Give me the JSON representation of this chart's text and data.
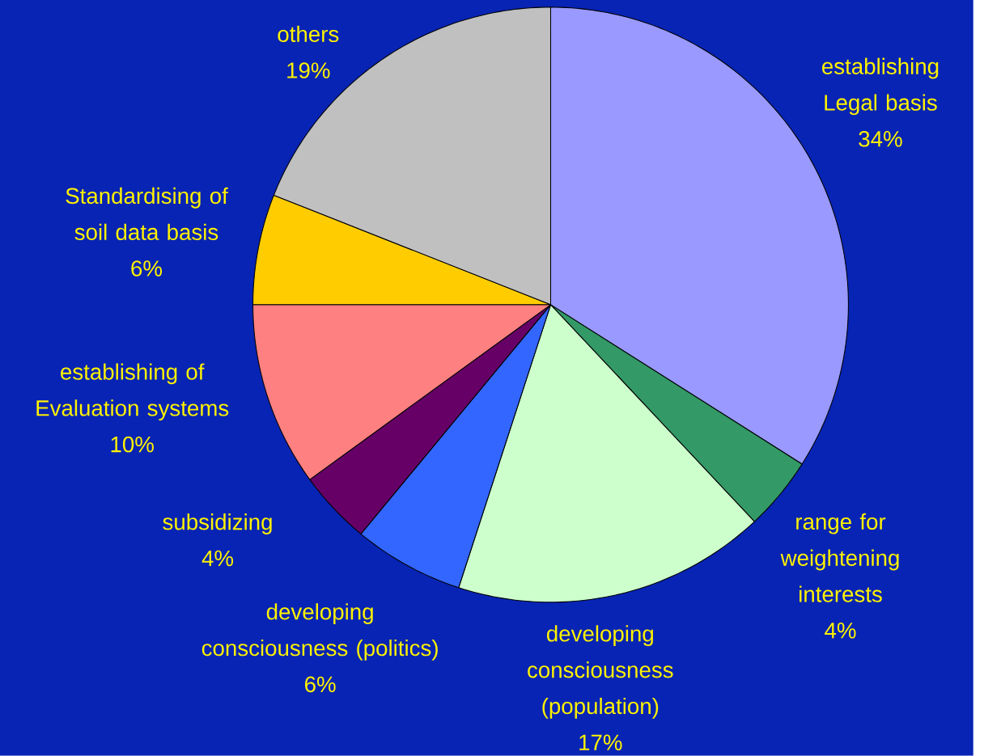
{
  "chart_data": {
    "type": "pie",
    "categories": [
      "establishing Legal basis",
      "range for weightening interests",
      "developing consciousness (population)",
      "developing consciousness (politics)",
      "subsidizing",
      "establishing of Evaluation systems",
      "Standardising of soil data basis",
      "others"
    ],
    "values": [
      34,
      4,
      17,
      6,
      4,
      10,
      6,
      19
    ],
    "colors": [
      "#9999ff",
      "#339966",
      "#ccffcc",
      "#3366ff",
      "#660066",
      "#ff8080",
      "#ffcc00",
      "#c0c0c0"
    ],
    "value_labels": [
      "34%",
      "4%",
      "17%",
      "6%",
      "4%",
      "10%",
      "6%",
      "19%"
    ]
  }
}
